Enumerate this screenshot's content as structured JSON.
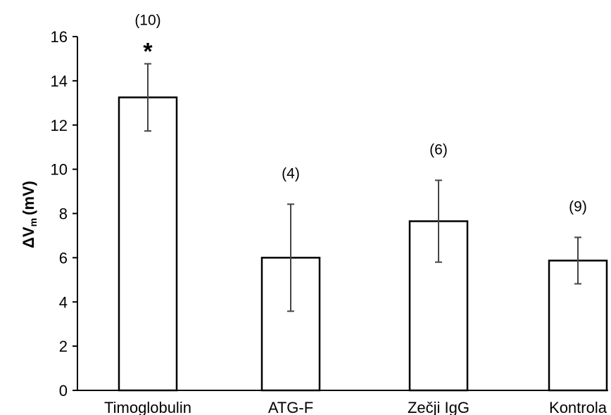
{
  "chart_data": {
    "type": "bar",
    "categories": [
      "Timoglobulin",
      "ATG-F",
      "Zečji IgG",
      "Kontrola"
    ],
    "values": [
      13.25,
      6.0,
      7.65,
      5.87
    ],
    "errors": [
      1.52,
      2.42,
      1.85,
      1.05
    ],
    "sample_sizes": [
      "(10)",
      "(4)",
      "(6)",
      "(9)"
    ],
    "significance": [
      "*",
      "",
      "",
      ""
    ],
    "ylabel": {
      "symbol": "ΔV",
      "subscript": "m",
      "unit": "(mV)"
    },
    "ylim": [
      0,
      16
    ],
    "yticks": [
      "0",
      "2",
      "4",
      "6",
      "8",
      "10",
      "12",
      "14",
      "16"
    ],
    "grid": false,
    "bar_fill": "#ffffff",
    "bar_stroke": "#000000",
    "error_bar_color": "#444444"
  }
}
